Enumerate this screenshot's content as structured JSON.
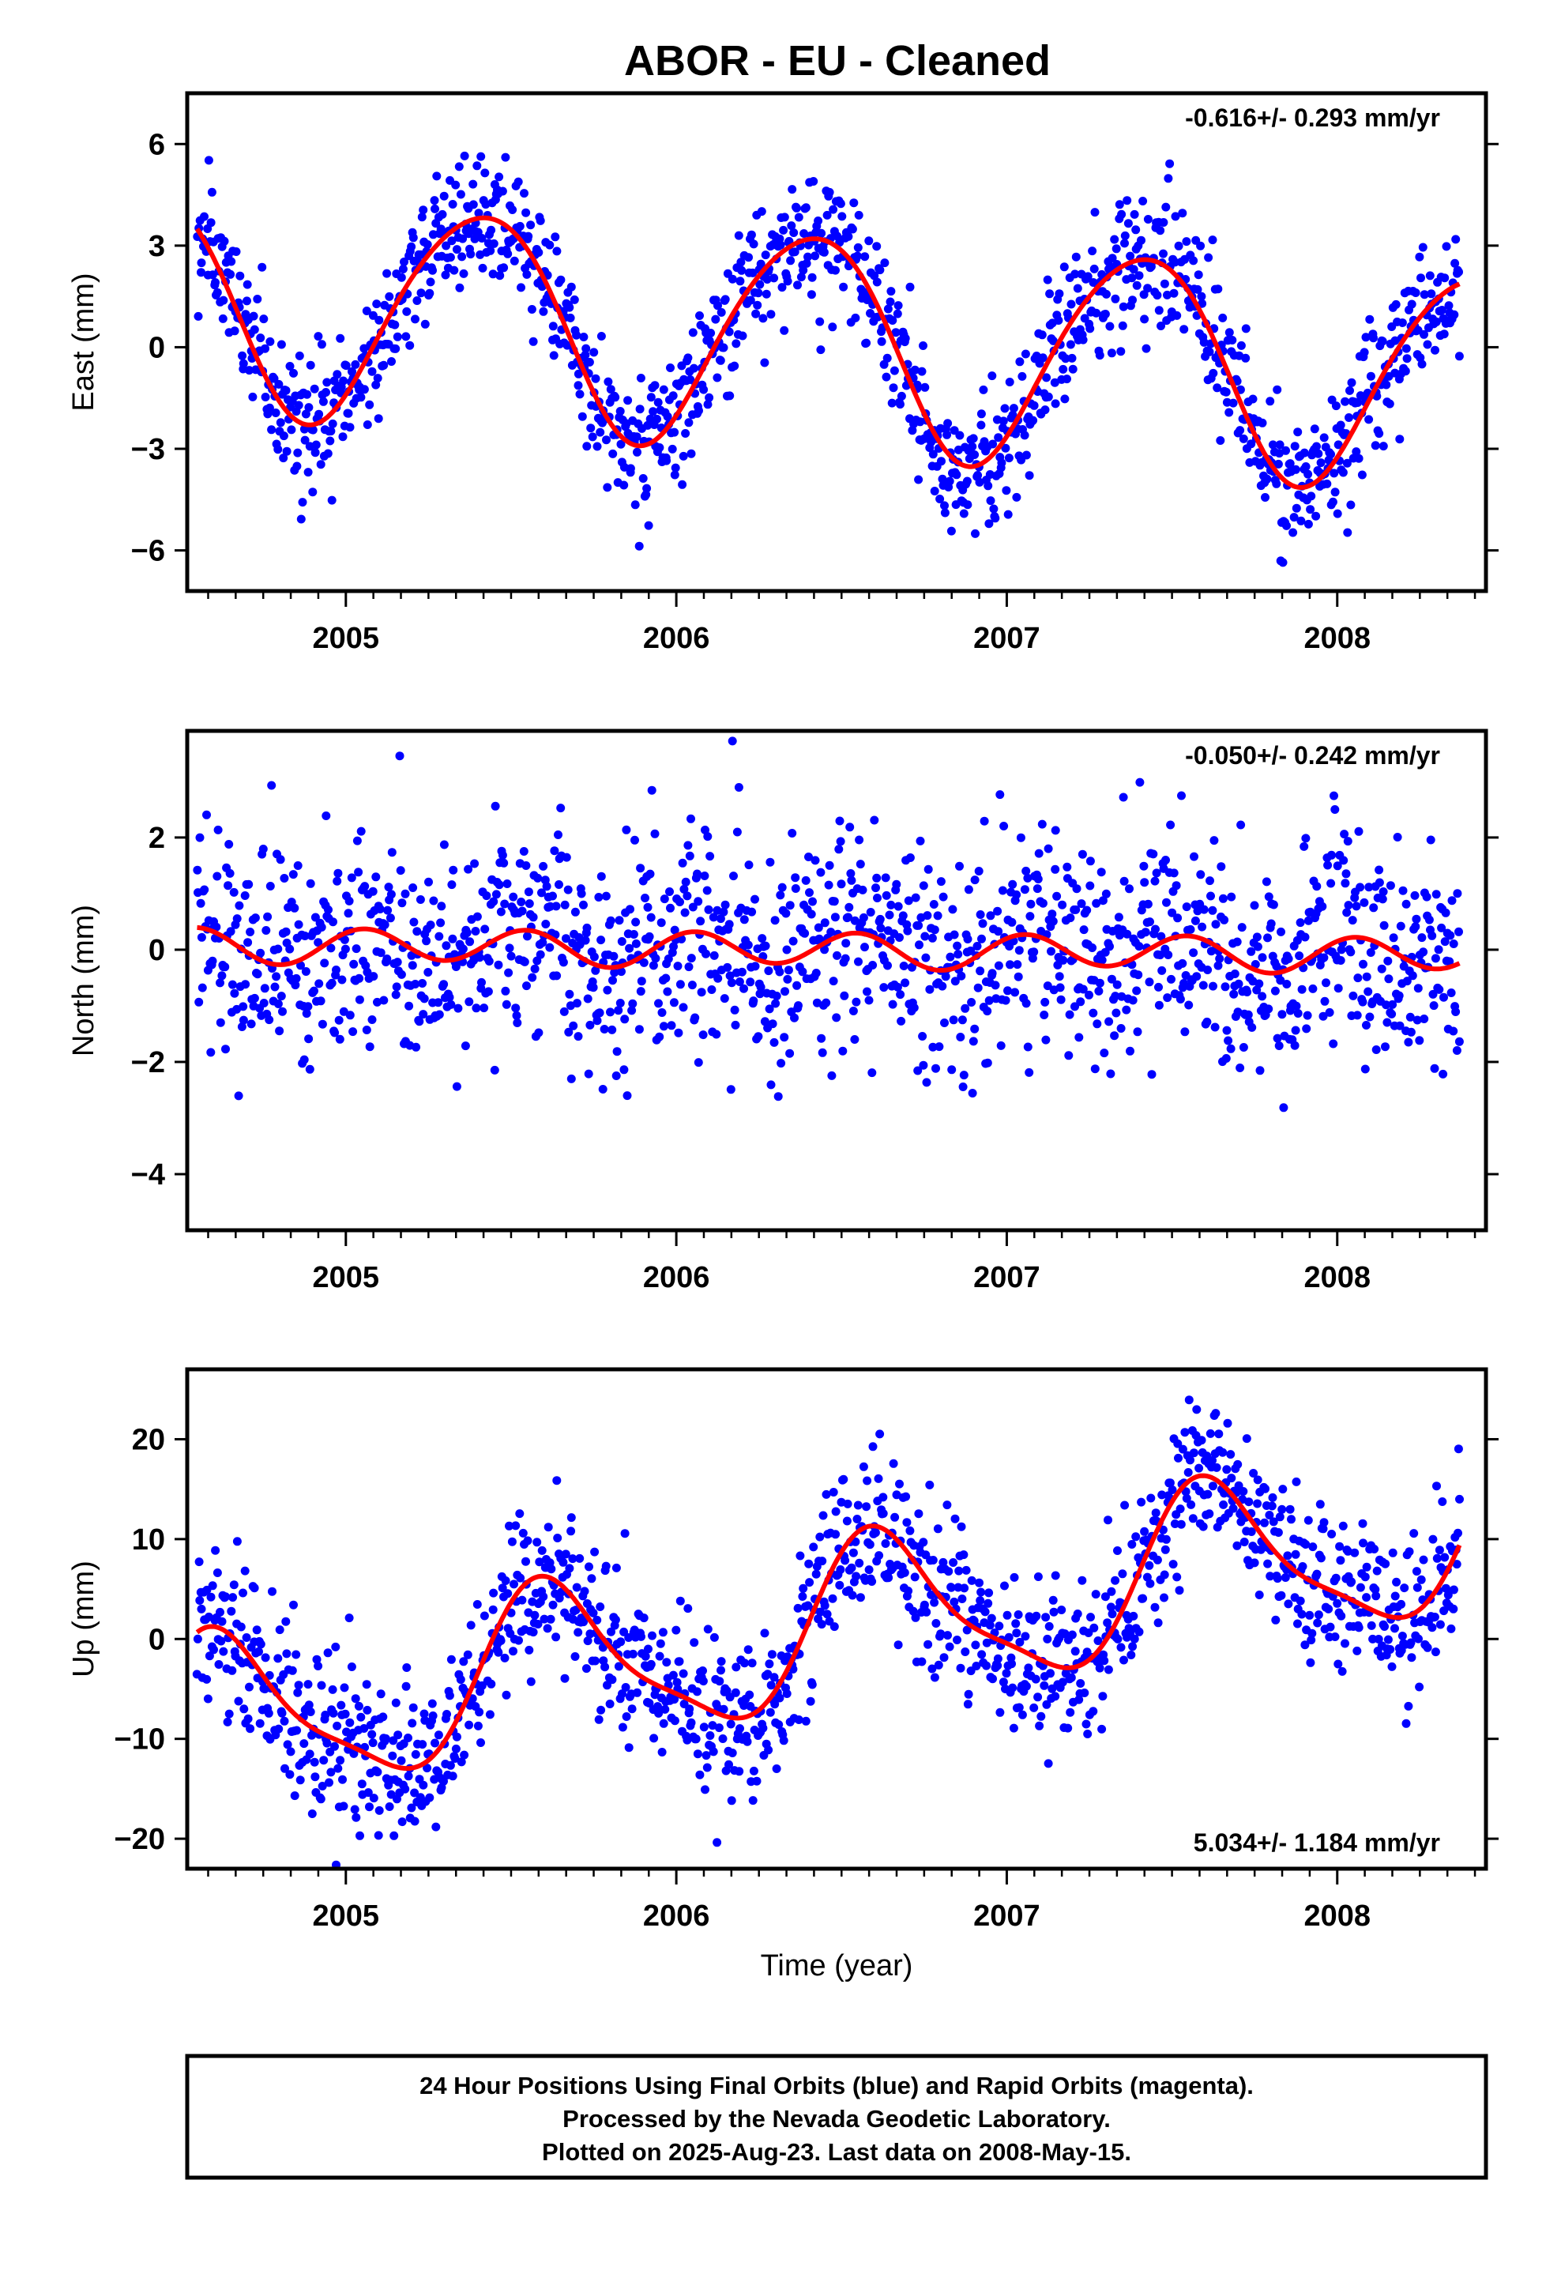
{
  "title": "ABOR  - EU - Cleaned",
  "colors": {
    "final_orbits": "#0000ff",
    "model": "#ff0000",
    "frame": "#000000"
  },
  "chart_data": [
    {
      "type": "scatter",
      "name": "east",
      "ylabel": "East (mm)",
      "xlabel": "",
      "xlim": [
        2004.52,
        2008.45
      ],
      "ylim": [
        -7.2,
        7.5
      ],
      "yticks": [
        -6,
        -3,
        0,
        3,
        6
      ],
      "ytick_labels": [
        "−6",
        "−3",
        "0",
        "3",
        "6"
      ],
      "xticks": [
        2005,
        2006,
        2007,
        2008
      ],
      "xtick_labels": [
        "2005",
        "2006",
        "2007",
        "2008"
      ],
      "rate_text": "-0.616+/- 0.293 mm/yr",
      "rate_position": "top-right",
      "model": {
        "offset": 0.2,
        "rate": -0.616,
        "annual_cos": 3.2,
        "annual_phase": 0.4,
        "semi_amp": 0.3,
        "semi_phase": 0.6
      },
      "noise_sd": 1.0,
      "series": [
        {
          "name": "",
          "x_start": 2004.55,
          "x_end": 2008.37,
          "n": 1380
        }
      ]
    },
    {
      "type": "scatter",
      "name": "north",
      "ylabel": "North (mm)",
      "xlabel": "",
      "xlim": [
        2004.52,
        2008.45
      ],
      "ylim": [
        -5.0,
        3.9
      ],
      "yticks": [
        -4,
        -2,
        0,
        2
      ],
      "ytick_labels": [
        "−4",
        "−2",
        "0",
        "2"
      ],
      "xticks": [
        2005,
        2006,
        2007,
        2008
      ],
      "xtick_labels": [
        "2005",
        "2006",
        "2007",
        "2008"
      ],
      "rate_text": "-0.050+/- 0.242 mm/yr",
      "rate_position": "top-right",
      "model": {
        "offset": 0.0,
        "rate": -0.05,
        "annual_cos": 0.05,
        "annual_phase": 0.3,
        "semi_amp": 0.3,
        "semi_phase": 0.55
      },
      "noise_sd": 1.0,
      "series": [
        {
          "name": "",
          "x_start": 2004.55,
          "x_end": 2008.37,
          "n": 1380
        }
      ]
    },
    {
      "type": "scatter",
      "name": "up",
      "ylabel": "Up (mm)",
      "xlabel": "Time (year)",
      "xlim": [
        2004.52,
        2008.45
      ],
      "ylim": [
        -23,
        27
      ],
      "yticks": [
        -20,
        -10,
        0,
        10,
        20
      ],
      "ytick_labels": [
        "−20",
        "−10",
        "0",
        "10",
        "20"
      ],
      "xticks": [
        2005,
        2006,
        2007,
        2008
      ],
      "xtick_labels": [
        "2005",
        "2006",
        "2007",
        "2008"
      ],
      "rate_text": "5.034+/- 1.184 mm/yr",
      "rate_position": "bottom-right",
      "model": {
        "offset": 1.0,
        "rate": 5.034,
        "annual_cos": 8.0,
        "annual_phase": 0.62,
        "semi_amp": 2.0,
        "semi_phase": 0.55
      },
      "noise_sd": 4.0,
      "series": [
        {
          "name": "",
          "x_start": 2004.55,
          "x_end": 2008.37,
          "n": 1380
        }
      ]
    }
  ],
  "footer": {
    "line1": "24 Hour Positions Using Final Orbits (blue) and Rapid Orbits (magenta).",
    "line2": "Processed by the Nevada Geodetic Laboratory.",
    "line3": "Plotted on 2025-Aug-23. Last data on 2008-May-15."
  }
}
